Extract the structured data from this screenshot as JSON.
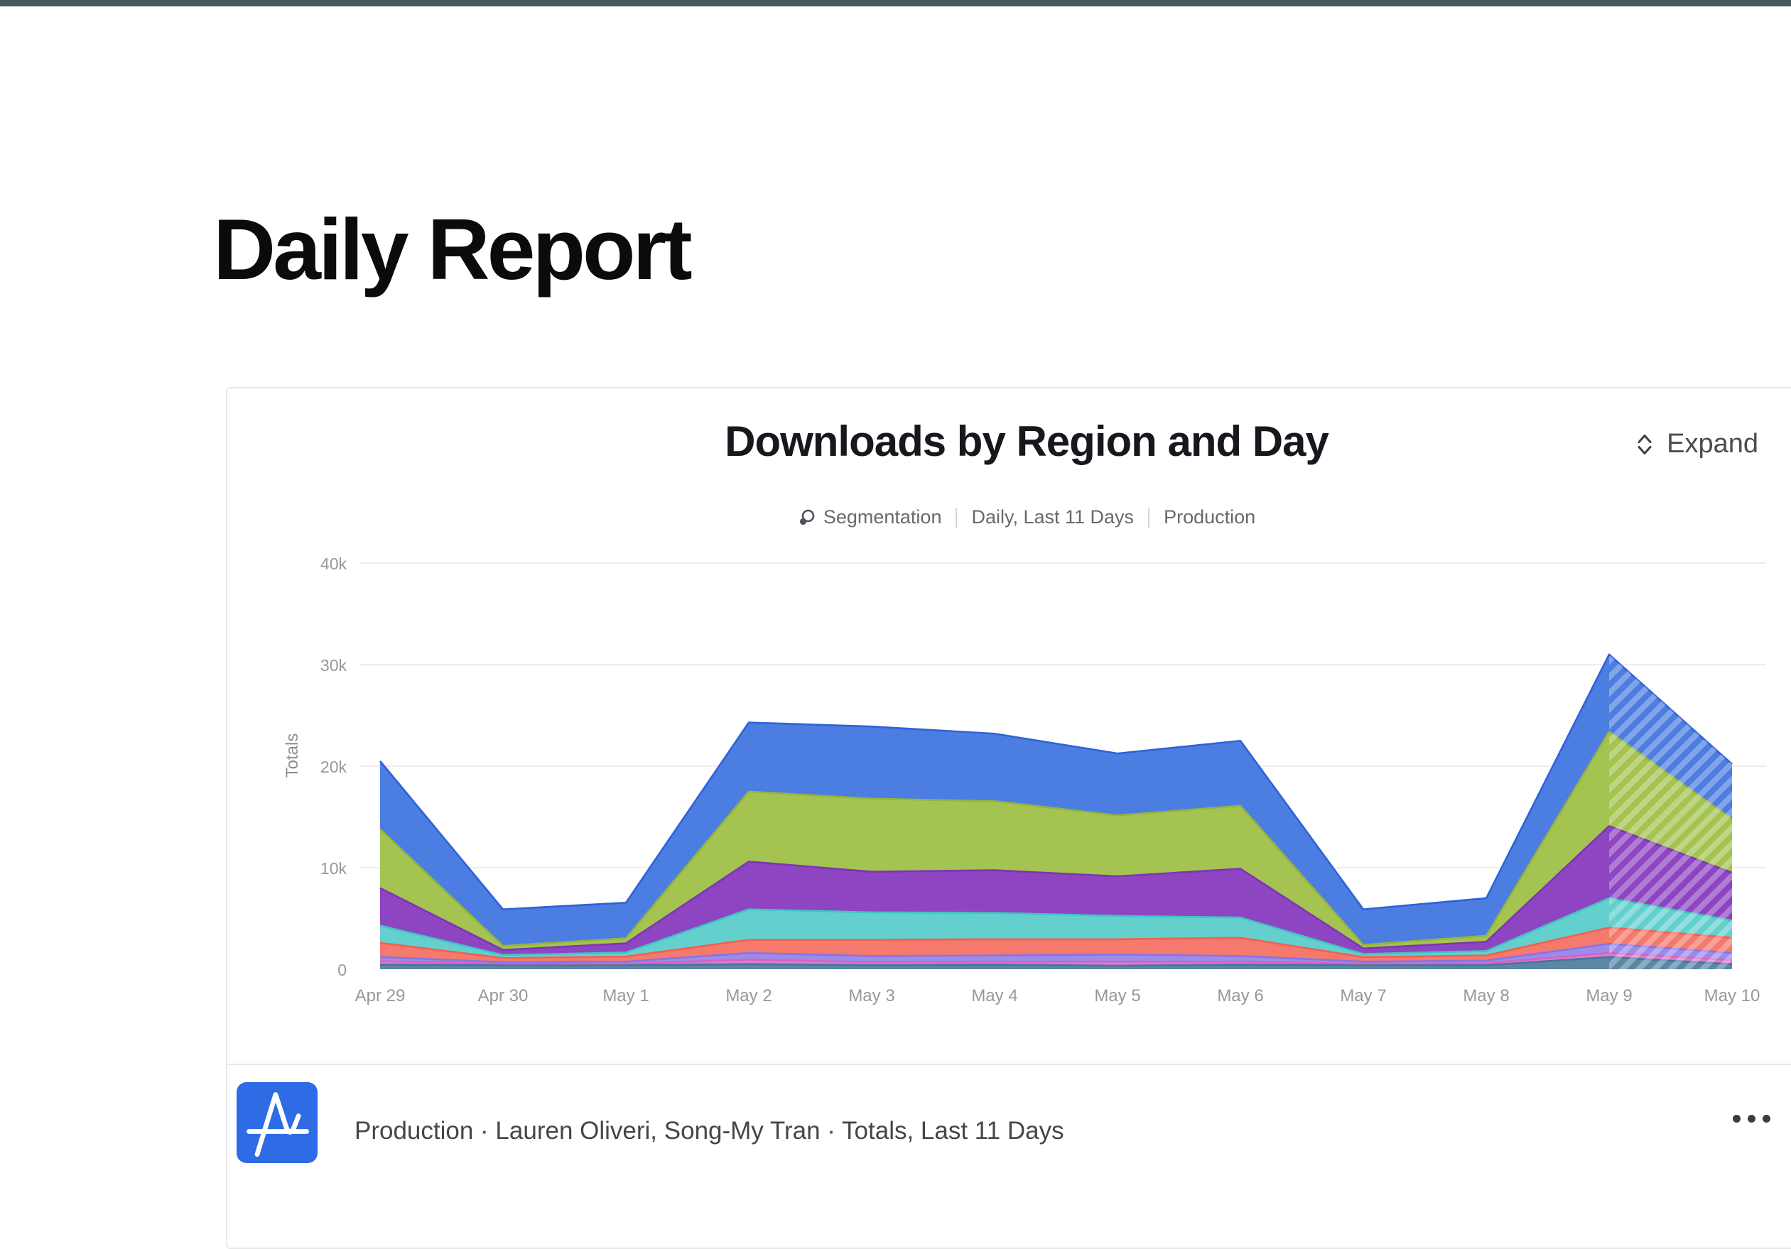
{
  "top_bar": {
    "color": "#415B61"
  },
  "page": {
    "title": "Daily Report"
  },
  "card": {
    "header": {
      "title": "Downloads by Region and Day",
      "meta": {
        "chart_type": "Segmentation",
        "interval": "Daily, Last 11 Days",
        "environment": "Production"
      },
      "expand_label": "Expand"
    },
    "footer": {
      "source_text": "Production · Lauren Oliveri, Song-My Tran · Totals, Last 11 Days",
      "logo_color": "#2E6CE6",
      "menu_icon": "more-options-ellipsis"
    }
  },
  "chart_data": {
    "type": "area",
    "stacked": true,
    "title": "Downloads by Region and Day",
    "ylabel": "Totals",
    "xlabel": "",
    "legend": "none",
    "grid": "horizontal",
    "ylim": [
      0,
      40000
    ],
    "yticks": [
      {
        "value": 0,
        "label": "0"
      },
      {
        "value": 10000,
        "label": "10k"
      },
      {
        "value": 20000,
        "label": "20k"
      },
      {
        "value": 30000,
        "label": "30k"
      },
      {
        "value": 40000,
        "label": "40k"
      }
    ],
    "categories": [
      "Apr 29",
      "Apr 30",
      "May 1",
      "May 2",
      "May 3",
      "May 4",
      "May 5",
      "May 6",
      "May 7",
      "May 8",
      "May 9",
      "May 10"
    ],
    "series_order": "bottom-to-top",
    "incomplete_last_segment": true,
    "series": [
      {
        "name": "slate",
        "fill": "#5B87A5",
        "line": "#47759A",
        "values": [
          450,
          400,
          400,
          500,
          400,
          450,
          350,
          450,
          400,
          400,
          1200,
          500
        ]
      },
      {
        "name": "pink",
        "fill": "#DD7BD0",
        "line": "#D263C3",
        "values": [
          350,
          150,
          150,
          450,
          300,
          300,
          400,
          300,
          150,
          200,
          400,
          400
        ]
      },
      {
        "name": "lavender",
        "fill": "#9C8BE8",
        "line": "#8673E6",
        "values": [
          400,
          150,
          200,
          650,
          600,
          600,
          700,
          550,
          200,
          250,
          900,
          700
        ]
      },
      {
        "name": "salmon",
        "fill": "#F5796C",
        "line": "#F2604F",
        "values": [
          1400,
          400,
          500,
          1300,
          1600,
          1600,
          1500,
          1800,
          450,
          500,
          1600,
          1500
        ]
      },
      {
        "name": "teal",
        "fill": "#63D0CE",
        "line": "#3FC4C1",
        "values": [
          1700,
          300,
          400,
          3000,
          2700,
          2600,
          2300,
          2000,
          300,
          450,
          2900,
          1700
        ]
      },
      {
        "name": "purple",
        "fill": "#8E45C1",
        "line": "#7D35B5",
        "values": [
          3700,
          500,
          900,
          4700,
          4000,
          4200,
          3900,
          4800,
          550,
          900,
          7100,
          4700
        ]
      },
      {
        "name": "green",
        "fill": "#A4C351",
        "line": "#93B53B",
        "values": [
          5800,
          400,
          500,
          6900,
          7200,
          6800,
          6000,
          6200,
          350,
          600,
          9300,
          5300
        ]
      },
      {
        "name": "blue",
        "fill": "#4C7DE0",
        "line": "#2E62D9",
        "values": [
          6700,
          3600,
          3500,
          6800,
          7100,
          6650,
          6100,
          6400,
          3500,
          3700,
          7600,
          5400
        ]
      }
    ]
  }
}
